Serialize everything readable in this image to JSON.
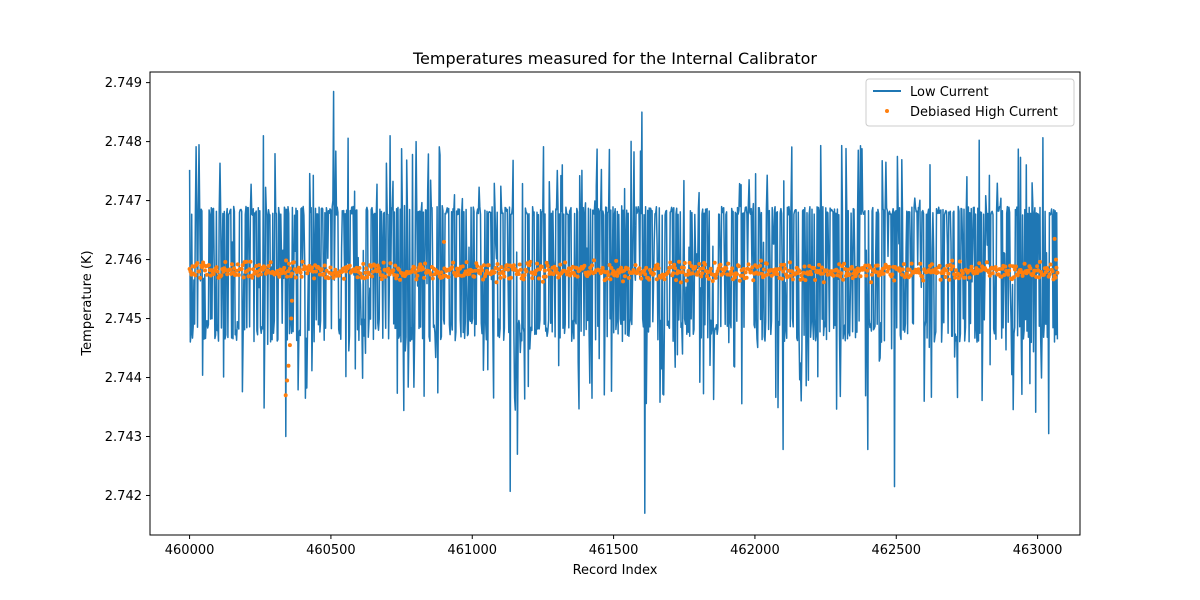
{
  "chart_data": {
    "type": "line",
    "title": "Temperatures measured for the Internal Calibrator",
    "xlabel": "Record Index",
    "ylabel": "Temperature (K)",
    "xlim": [
      459860,
      463150
    ],
    "ylim": [
      2.74133,
      2.74918
    ],
    "xticks": [
      460000,
      460500,
      461000,
      461500,
      462000,
      462500,
      463000
    ],
    "xtick_labels": [
      "460000",
      "460500",
      "461000",
      "461500",
      "462000",
      "462500",
      "463000"
    ],
    "yticks": [
      2.742,
      2.743,
      2.744,
      2.745,
      2.746,
      2.747,
      2.748,
      2.749
    ],
    "ytick_labels": [
      "2.742",
      "2.743",
      "2.744",
      "2.745",
      "2.746",
      "2.747",
      "2.748",
      "2.749"
    ],
    "x_start": 460000,
    "x_end": 463070,
    "legend_position": "top-right",
    "series": [
      {
        "name": "Low Current",
        "kind": "line",
        "color": "#1f77b4",
        "center": 2.7459,
        "typical_high": 2.7469,
        "typical_low": 2.745,
        "max": 2.74885,
        "min": 2.7417,
        "notable_points": [
          {
            "x": 460000,
            "y": 2.74752
          },
          {
            "x": 460260,
            "y": 2.7481
          },
          {
            "x": 460340,
            "y": 2.743
          },
          {
            "x": 460510,
            "y": 2.74885
          },
          {
            "x": 461135,
            "y": 2.74207
          },
          {
            "x": 461160,
            "y": 2.7427
          },
          {
            "x": 461600,
            "y": 2.7485
          },
          {
            "x": 461610,
            "y": 2.7417
          },
          {
            "x": 462100,
            "y": 2.74278
          },
          {
            "x": 462400,
            "y": 2.74278
          },
          {
            "x": 462495,
            "y": 2.74215
          },
          {
            "x": 462980,
            "y": 2.7473
          },
          {
            "x": 463040,
            "y": 2.74305
          }
        ]
      },
      {
        "name": "Debiased High Current",
        "kind": "scatter",
        "color": "#ff7f0e",
        "center": 2.7458,
        "spread": 0.00022,
        "notable_points": [
          {
            "x": 460340,
            "y": 2.7437
          },
          {
            "x": 460345,
            "y": 2.74395
          },
          {
            "x": 460350,
            "y": 2.7442
          },
          {
            "x": 460355,
            "y": 2.74455
          },
          {
            "x": 460360,
            "y": 2.745
          },
          {
            "x": 460362,
            "y": 2.7453
          },
          {
            "x": 460900,
            "y": 2.7463
          },
          {
            "x": 463060,
            "y": 2.74635
          },
          {
            "x": 463065,
            "y": 2.746
          }
        ]
      }
    ]
  }
}
